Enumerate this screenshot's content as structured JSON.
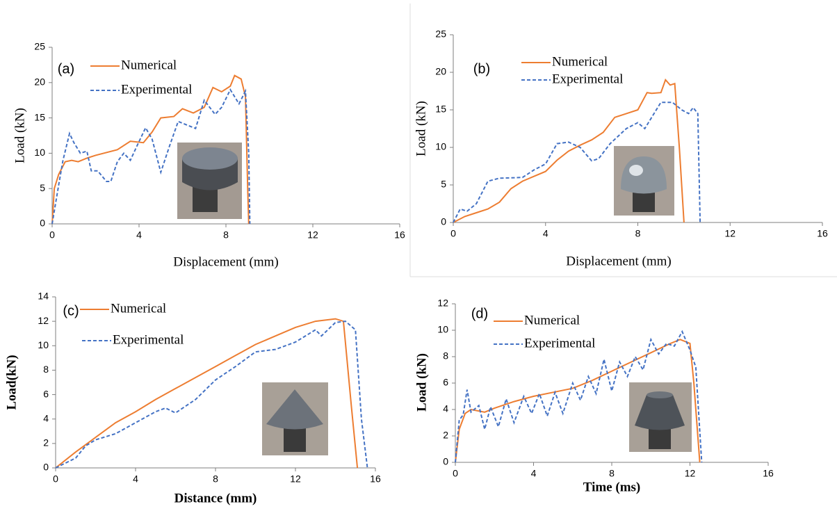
{
  "chart_data": [
    {
      "type": "line",
      "panel_label": "(a)",
      "xlabel": "Displacement  (mm)",
      "ylabel": "Load (kN)",
      "xlim": [
        0,
        16
      ],
      "ylim": [
        0,
        25
      ],
      "xticks": [
        0,
        4,
        8,
        12,
        16
      ],
      "yticks": [
        0,
        5,
        10,
        15,
        20,
        25
      ],
      "series": [
        {
          "name": "Numerical",
          "color": "#ed7d31",
          "linestyle": "solid",
          "x": [
            0,
            0.1,
            0.3,
            0.6,
            0.9,
            1.2,
            1.6,
            2,
            3,
            3.6,
            4.2,
            4.6,
            5,
            5.6,
            6,
            6.5,
            7,
            7.4,
            7.8,
            8.2,
            8.4,
            8.7,
            8.9,
            9.0,
            9.05
          ],
          "values": [
            0,
            5,
            7,
            8.8,
            9,
            8.8,
            9.3,
            9.7,
            10.5,
            11.7,
            11.5,
            13,
            15,
            15.2,
            16.3,
            15.7,
            16.5,
            19.3,
            18.7,
            19.5,
            21,
            20.5,
            18,
            5,
            0
          ]
        },
        {
          "name": "Experimental",
          "color": "#4472c4",
          "linestyle": "dashed",
          "x": [
            0,
            0.3,
            0.5,
            0.8,
            1,
            1.3,
            1.6,
            1.8,
            2.1,
            2.5,
            2.7,
            3,
            3.3,
            3.6,
            3.9,
            4.3,
            4.6,
            5,
            5.4,
            5.8,
            6.2,
            6.6,
            7,
            7.5,
            7.8,
            8.2,
            8.6,
            8.9,
            9.05,
            9.1
          ],
          "values": [
            0,
            5.5,
            9,
            12.8,
            11.5,
            10,
            10.3,
            7.5,
            7.5,
            6,
            6,
            8.8,
            10,
            9,
            11,
            13.6,
            12,
            7.3,
            11,
            14.5,
            14,
            13.5,
            17.5,
            15.5,
            16.5,
            19,
            17,
            18.8,
            10,
            0
          ]
        }
      ]
    },
    {
      "type": "line",
      "panel_label": "(b)",
      "xlabel": "Displacement  (mm)",
      "ylabel": "Load (kN)",
      "xlim": [
        0,
        16
      ],
      "ylim": [
        0,
        25
      ],
      "xticks": [
        0,
        4,
        8,
        12,
        16
      ],
      "yticks": [
        0,
        5,
        10,
        15,
        20,
        25
      ],
      "series": [
        {
          "name": "Numerical",
          "color": "#ed7d31",
          "linestyle": "solid",
          "x": [
            0,
            0.5,
            1,
            1.5,
            2,
            2.5,
            3,
            4,
            4.5,
            5,
            5.5,
            6,
            6.5,
            7,
            7.5,
            8,
            8.4,
            8.6,
            9,
            9.2,
            9.4,
            9.6,
            9.8,
            10
          ],
          "values": [
            0,
            0.8,
            1.3,
            1.8,
            2.7,
            4.5,
            5.5,
            6.8,
            8.3,
            9.5,
            10.3,
            11,
            12,
            14,
            14.5,
            15,
            17.3,
            17.2,
            17.3,
            19,
            18.3,
            18.5,
            10,
            0
          ]
        },
        {
          "name": "Experimental",
          "color": "#4472c4",
          "linestyle": "dashed",
          "x": [
            0,
            0.3,
            0.6,
            1,
            1.5,
            2,
            3,
            3.5,
            4,
            4.5,
            5,
            5.5,
            6,
            6.3,
            6.8,
            7.5,
            8,
            8.3,
            9,
            9.5,
            9.9,
            10.2,
            10.4,
            10.6,
            10.7
          ],
          "values": [
            0,
            1.8,
            1.5,
            2.5,
            5.5,
            5.9,
            6,
            7,
            7.8,
            10.5,
            10.7,
            10,
            8.2,
            8.5,
            10.5,
            12.5,
            13.3,
            12.5,
            16,
            16,
            15,
            14.5,
            15.3,
            14.5,
            0
          ]
        }
      ]
    },
    {
      "type": "line",
      "panel_label": "(c)",
      "xlabel": "Distance (mm)",
      "ylabel": "Load(kN)",
      "xlim": [
        0,
        16
      ],
      "ylim": [
        0,
        14
      ],
      "xticks": [
        0,
        4,
        8,
        12,
        16
      ],
      "yticks": [
        0,
        2,
        4,
        6,
        8,
        10,
        12,
        14
      ],
      "series": [
        {
          "name": "Numerical",
          "color": "#ed7d31",
          "linestyle": "solid",
          "x": [
            0,
            1,
            2,
            3,
            4,
            5,
            6,
            7,
            8,
            9,
            10,
            11,
            12,
            13,
            14,
            14.4,
            14.8,
            15.1
          ],
          "values": [
            0,
            1.3,
            2.5,
            3.7,
            4.6,
            5.6,
            6.5,
            7.4,
            8.3,
            9.2,
            10.1,
            10.8,
            11.5,
            12,
            12.2,
            12,
            5,
            0
          ]
        },
        {
          "name": "Experimental",
          "color": "#4472c4",
          "linestyle": "dashed",
          "x": [
            0,
            1,
            1.5,
            2,
            3,
            4,
            5,
            5.5,
            6,
            7,
            8,
            9,
            10,
            11,
            12,
            13,
            13.3,
            14,
            14.5,
            15,
            15.3,
            15.6
          ],
          "values": [
            0,
            0.8,
            1.8,
            2.3,
            2.8,
            3.7,
            4.6,
            4.9,
            4.5,
            5.6,
            7.2,
            8.3,
            9.5,
            9.7,
            10.3,
            11.3,
            10.8,
            11.9,
            12,
            11.3,
            4,
            0
          ]
        }
      ]
    },
    {
      "type": "line",
      "panel_label": "(d)",
      "xlabel": "Time (ms)",
      "ylabel": "Load (kN)",
      "xlim": [
        0,
        16
      ],
      "ylim": [
        0,
        12
      ],
      "xticks": [
        0,
        4,
        8,
        12,
        16
      ],
      "yticks": [
        0,
        2,
        4,
        6,
        8,
        10,
        12
      ],
      "series": [
        {
          "name": "Numerical",
          "color": "#ed7d31",
          "linestyle": "solid",
          "x": [
            0,
            0.2,
            0.5,
            0.8,
            1.5,
            2,
            3,
            4,
            5,
            6,
            7,
            8,
            9,
            10,
            11,
            11.5,
            12,
            12.2,
            12.5
          ],
          "values": [
            0,
            2.5,
            3.7,
            4,
            3.8,
            4.1,
            4.6,
            5,
            5.3,
            5.6,
            6.2,
            6.9,
            7.6,
            8.3,
            9,
            9.3,
            9,
            6,
            0
          ]
        },
        {
          "name": "Experimental",
          "color": "#4472c4",
          "linestyle": "dashed",
          "x": [
            0,
            0.2,
            0.4,
            0.6,
            0.8,
            1.2,
            1.5,
            1.8,
            2.2,
            2.6,
            3,
            3.5,
            3.9,
            4.3,
            4.7,
            5.1,
            5.5,
            6,
            6.4,
            6.8,
            7.2,
            7.6,
            8,
            8.4,
            8.8,
            9.2,
            9.6,
            10,
            10.4,
            10.8,
            11.2,
            11.6,
            12,
            12.3,
            12.6
          ],
          "values": [
            0,
            3.2,
            3.6,
            5.5,
            3.8,
            4.3,
            2.5,
            4.2,
            2.7,
            4.8,
            3,
            5,
            3.7,
            5.2,
            3.5,
            5.3,
            3.7,
            6,
            4.7,
            6.5,
            5.2,
            7.8,
            5.4,
            7.6,
            6.5,
            8,
            7,
            9.3,
            8.2,
            9,
            8.8,
            9.9,
            8.5,
            7.2,
            0
          ]
        }
      ]
    }
  ]
}
